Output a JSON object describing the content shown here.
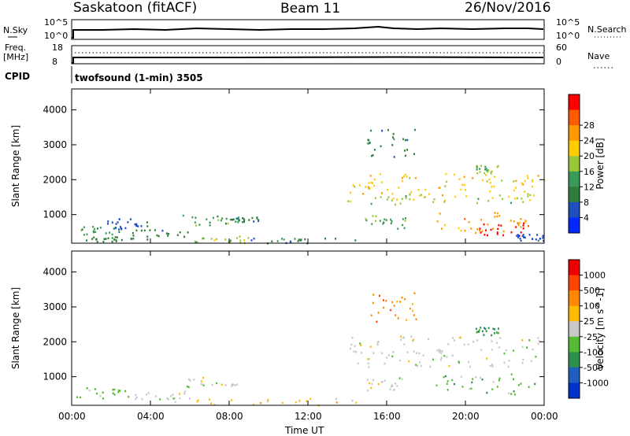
{
  "header": {
    "station": "Saskatoon (fitACF)",
    "beam": "Beam 11",
    "date": "26/Nov/2016"
  },
  "panels": {
    "nsky_label": "N.Sky",
    "nsky_ticks": [
      "10^5",
      "10^0"
    ],
    "nsearch_label": "N.Search",
    "nsearch_ticks": [
      "10^5",
      "10^0"
    ],
    "freq_label": "Freq.",
    "freq_unit": "[MHz]",
    "freq_ticks": [
      "18",
      "8"
    ],
    "nave_label": "Nave",
    "nave_ticks": [
      "60",
      "0"
    ],
    "cpid_label": "CPID",
    "cpid_value": "twofsound (1-min) 3505"
  },
  "chart_data": [
    {
      "type": "heatmap",
      "title": "",
      "quantity": "Power",
      "xlabel": "Time UT",
      "ylabel": "Slant Range [km]",
      "xticks": [
        "00:00",
        "04:00",
        "08:00",
        "12:00",
        "16:00",
        "20:00",
        "00:00"
      ],
      "yticks": [
        "1000",
        "2000",
        "3000",
        "4000"
      ],
      "ylim": [
        180,
        4600
      ],
      "xlim_hours": [
        0,
        24
      ],
      "colorbar": {
        "label": "Power [dB]",
        "ticks": [
          "4",
          "8",
          "12",
          "16",
          "20",
          "24",
          "28"
        ],
        "colors": [
          "#0028ff",
          "#1f4fbf",
          "#2f7d3a",
          "#3a9a5a",
          "#9cc63a",
          "#ffcc00",
          "#ff9900",
          "#ff5a00",
          "#ff0000"
        ]
      },
      "regions": [
        {
          "x": [
            0.2,
            2.5
          ],
          "y": [
            400,
            700
          ],
          "level": 3
        },
        {
          "x": [
            0.5,
            3.0
          ],
          "y": [
            250,
            400
          ],
          "level": 2
        },
        {
          "x": [
            1.5,
            4.0
          ],
          "y": [
            600,
            900
          ],
          "level": 1
        },
        {
          "x": [
            3.0,
            6.0
          ],
          "y": [
            300,
            600
          ],
          "level": 2
        },
        {
          "x": [
            5.5,
            8.5
          ],
          "y": [
            700,
            1000
          ],
          "level": 3
        },
        {
          "x": [
            6.0,
            9.0
          ],
          "y": [
            200,
            400
          ],
          "level": 4
        },
        {
          "x": [
            8.0,
            9.5
          ],
          "y": [
            800,
            950
          ],
          "level": 2
        },
        {
          "x": [
            9.0,
            14.5
          ],
          "y": [
            200,
            350
          ],
          "level": 2
        },
        {
          "x": [
            14.0,
            24.0
          ],
          "y": [
            1400,
            2200
          ],
          "level": 5
        },
        {
          "x": [
            15.0,
            23.5
          ],
          "y": [
            1300,
            1600
          ],
          "level": 4
        },
        {
          "x": [
            14.8,
            17.0
          ],
          "y": [
            600,
            1000
          ],
          "level": 3
        },
        {
          "x": [
            18.5,
            23.5
          ],
          "y": [
            500,
            1100
          ],
          "level": 6
        },
        {
          "x": [
            20.5,
            23.0
          ],
          "y": [
            400,
            800
          ],
          "level": 8
        },
        {
          "x": [
            15.0,
            17.5
          ],
          "y": [
            2600,
            3500
          ],
          "level": 2
        },
        {
          "x": [
            20.5,
            21.7
          ],
          "y": [
            2200,
            2450
          ],
          "level": 4
        },
        {
          "x": [
            22.5,
            24.0
          ],
          "y": [
            250,
            450
          ],
          "level": 1
        }
      ]
    },
    {
      "type": "heatmap",
      "title": "",
      "quantity": "Velocity",
      "xlabel": "Time UT",
      "ylabel": "Slant Range [km]",
      "xticks": [
        "00:00",
        "04:00",
        "08:00",
        "12:00",
        "16:00",
        "20:00",
        "00:00"
      ],
      "yticks": [
        "1000",
        "2000",
        "3000",
        "4000"
      ],
      "ylim": [
        180,
        4600
      ],
      "xlim_hours": [
        0,
        24
      ],
      "colorbar": {
        "label": "Velocity [m s^-1]",
        "ticks": [
          "1000",
          "500",
          "100",
          "25",
          "-25",
          "-100",
          "-500",
          "-1000"
        ],
        "colors": [
          "#0033cc",
          "#1f5fbf",
          "#2f8f4f",
          "#55bb33",
          "#c8c8c8",
          "#ffbb00",
          "#ff8800",
          "#ff4400",
          "#ee0000"
        ]
      },
      "regions": [
        {
          "x": [
            0.2,
            3.0
          ],
          "y": [
            400,
            700
          ],
          "level": 3
        },
        {
          "x": [
            3.0,
            6.0
          ],
          "y": [
            300,
            600
          ],
          "level": 4
        },
        {
          "x": [
            5.5,
            8.5
          ],
          "y": [
            700,
            1000
          ],
          "level": 4
        },
        {
          "x": [
            6.0,
            14.5
          ],
          "y": [
            200,
            400
          ],
          "level": 5
        },
        {
          "x": [
            14.0,
            24.0
          ],
          "y": [
            1300,
            2200
          ],
          "level": 4
        },
        {
          "x": [
            14.8,
            17.0
          ],
          "y": [
            600,
            1000
          ],
          "level": 4
        },
        {
          "x": [
            18.5,
            23.5
          ],
          "y": [
            500,
            1100
          ],
          "level": 3
        },
        {
          "x": [
            15.0,
            17.5
          ],
          "y": [
            2600,
            3500
          ],
          "level": 6
        },
        {
          "x": [
            20.5,
            21.7
          ],
          "y": [
            2200,
            2450
          ],
          "level": 2
        }
      ]
    }
  ]
}
